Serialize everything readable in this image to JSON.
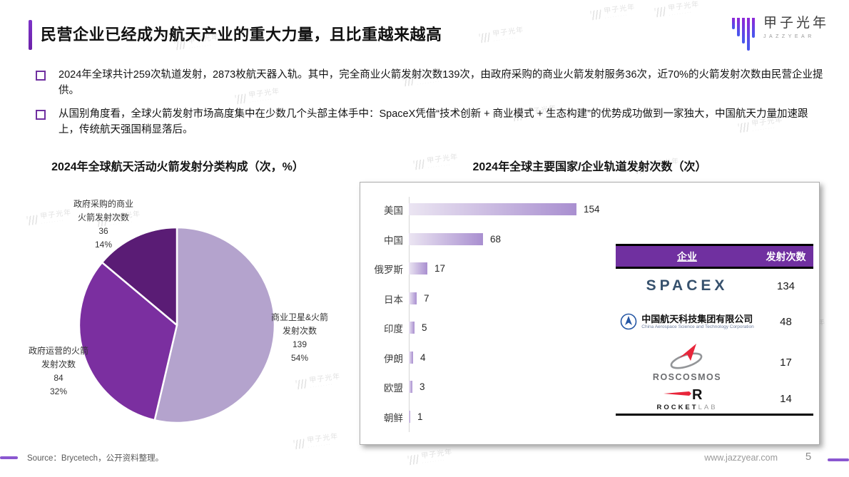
{
  "header": {
    "title": "民营企业已经成为航天产业的重大力量，且比重越来越高",
    "logo": {
      "name": "甲子光年",
      "sub": "JAZZYEAR"
    }
  },
  "bullets": [
    "2024年全球共计259次轨道发射，2873枚航天器入轨。其中，完全商业火箭发射次数139次，由政府采购的商业火箭发射服务36次，近70%的火箭发射次数由民营企业提供。",
    "从国别角度看，全球火箭发射市场高度集中在少数几个头部主体手中：SpaceX凭借“技术创新 + 商业模式 + 生态构建”的优势成功做到一家独大，中国航天力量加速跟上，传统航天强国稍显落后。"
  ],
  "watermark_text": "甲子光年",
  "accent_color": "#7030a0",
  "chart_data": [
    {
      "type": "pie",
      "title": "2024年全球航天活动火箭发射分类构成（次，%）",
      "start_angle_deg": -90,
      "direction": "clockwise",
      "slices": [
        {
          "name": "商业卫星&火箭发射次数",
          "label_lines": [
            "商业卫星&火箭",
            "发射次数"
          ],
          "value": 139,
          "percent": "54%",
          "color": "#b4a3cd"
        },
        {
          "name": "政府运营的火箭发射次数",
          "label_lines": [
            "政府运营的火箭",
            "发射次数"
          ],
          "value": 84,
          "percent": "32%",
          "color": "#7b2fa0"
        },
        {
          "name": "政府采购的商业火箭发射次数",
          "label_lines": [
            "政府采购的商业",
            "火箭发射次数"
          ],
          "value": 36,
          "percent": "14%",
          "color": "#5a1c75"
        }
      ]
    },
    {
      "type": "bar",
      "title": "2024年全球主要国家/企业轨道发射次数（次）",
      "orientation": "horizontal",
      "categories": [
        "美国",
        "中国",
        "俄罗斯",
        "日本",
        "印度",
        "伊朗",
        "欧盟",
        "朝鲜"
      ],
      "values": [
        154,
        68,
        17,
        7,
        5,
        4,
        3,
        1
      ],
      "bar_gradient": [
        "#ebe5f2",
        "#a98fd0"
      ],
      "xlim": [
        0,
        160
      ],
      "grid": false
    },
    {
      "type": "table",
      "headers": [
        "企业",
        "发射次数"
      ],
      "header_bg": "#7030a0",
      "rows": [
        {
          "company": "SPACEX",
          "value": 134
        },
        {
          "company": "中国航天科技集团有限公司",
          "company_en": "China Aerospace Science and Technology Corporation",
          "value": 48
        },
        {
          "company": "ROSCOSMOS",
          "value": 17
        },
        {
          "company": "ROCKET",
          "company2": "LAB",
          "value": 14
        }
      ]
    }
  ],
  "footer": {
    "source": "Source：Brycetech，公开资料整理。",
    "website": "www.jazzyear.com",
    "page": "5"
  }
}
